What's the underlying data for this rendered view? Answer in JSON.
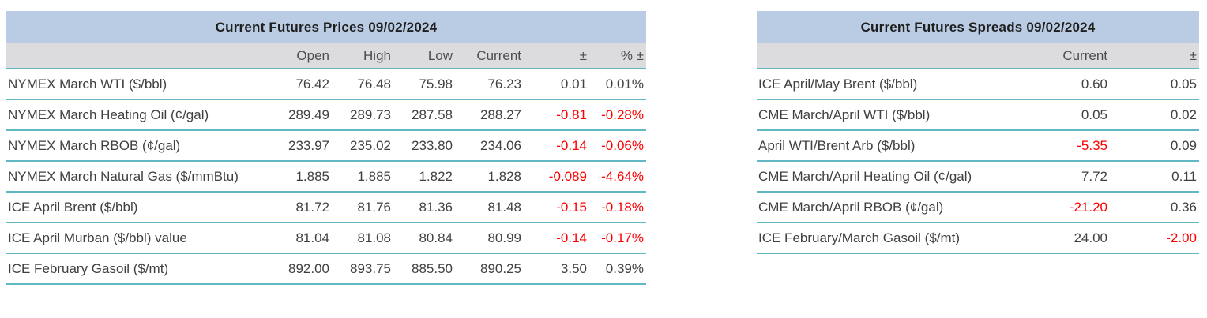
{
  "report_date": "09/02/2024",
  "colors": {
    "title_bg": "#b9cce4",
    "subheader_bg": "#dcdcde",
    "row_border": "#62b8c2",
    "text": "#404040",
    "title_text": "#1f1f1f",
    "negative": "#fe0000"
  },
  "chart_data": [
    {
      "type": "table",
      "name": "prices",
      "title": "Current Futures Prices 09/02/2024",
      "columns": [
        "",
        "Open",
        "High",
        "Low",
        "Current",
        "±",
        "% ±"
      ],
      "rows": [
        [
          "NYMEX March WTI ($/bbl)",
          "76.42",
          "76.48",
          "75.98",
          "76.23",
          "0.01",
          "0.01%"
        ],
        [
          "NYMEX March Heating Oil (¢/gal)",
          "289.49",
          "289.73",
          "287.58",
          "288.27",
          "-0.81",
          "-0.28%"
        ],
        [
          "NYMEX March RBOB (¢/gal)",
          "233.97",
          "235.02",
          "233.80",
          "234.06",
          "-0.14",
          "-0.06%"
        ],
        [
          "NYMEX March Natural Gas ($/mmBtu)",
          "1.885",
          "1.885",
          "1.822",
          "1.828",
          "-0.089",
          "-4.64%"
        ],
        [
          "ICE April Brent ($/bbl)",
          "81.72",
          "81.76",
          "81.36",
          "81.48",
          "-0.15",
          "-0.18%"
        ],
        [
          "ICE April Murban ($/bbl) value",
          "81.04",
          "81.08",
          "80.84",
          "80.99",
          "-0.14",
          "-0.17%"
        ],
        [
          "ICE February Gasoil ($/mt)",
          "892.00",
          "893.75",
          "885.50",
          "890.25",
          "3.50",
          "0.39%"
        ]
      ]
    },
    {
      "type": "table",
      "name": "spreads",
      "title": "Current Futures Spreads 09/02/2024",
      "columns": [
        "",
        "Current",
        "±"
      ],
      "rows": [
        [
          "ICE April/May Brent ($/bbl)",
          "0.60",
          "0.05"
        ],
        [
          "CME March/April WTI ($/bbl)",
          "0.05",
          "0.02"
        ],
        [
          "April WTI/Brent Arb ($/bbl)",
          "-5.35",
          "0.09"
        ],
        [
          "CME March/April Heating Oil (¢/gal)",
          "7.72",
          "0.11"
        ],
        [
          "CME March/April RBOB (¢/gal)",
          "-21.20",
          "0.36"
        ],
        [
          "ICE February/March Gasoil ($/mt)",
          "24.00",
          "-2.00"
        ]
      ]
    }
  ]
}
